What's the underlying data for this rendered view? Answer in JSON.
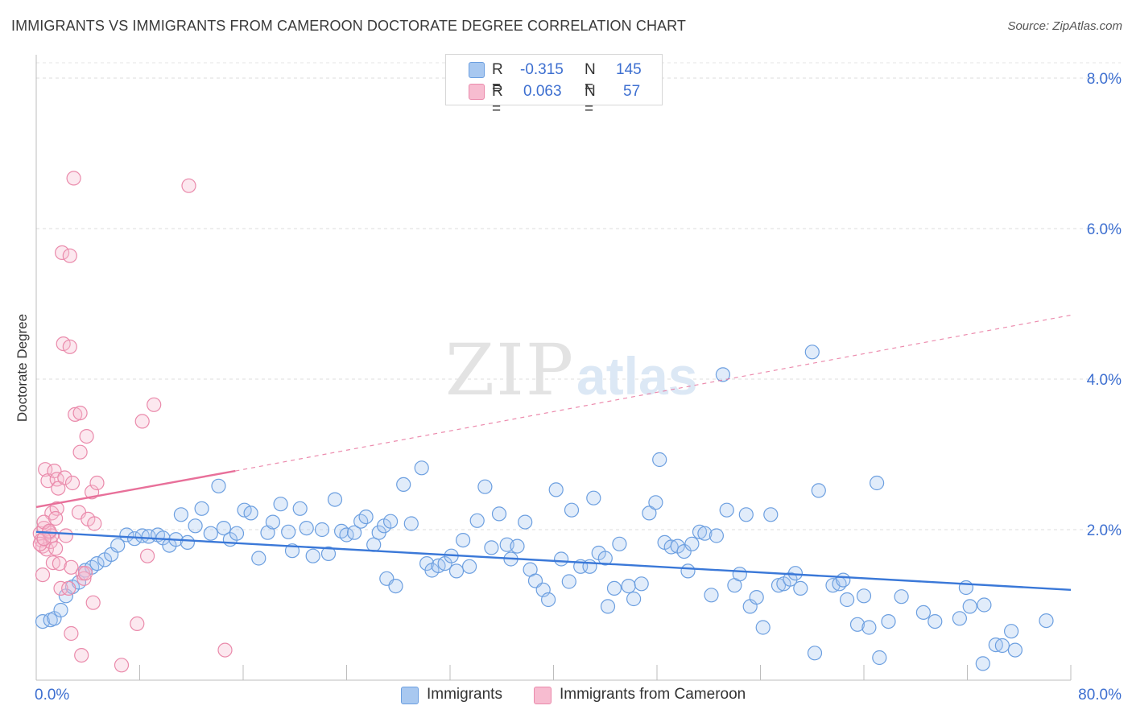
{
  "title": "IMMIGRANTS VS IMMIGRANTS FROM CAMEROON DOCTORATE DEGREE CORRELATION CHART",
  "source": "Source: ZipAtlas.com",
  "watermark": {
    "zip": "ZIP",
    "atlas": "atlas"
  },
  "legend": {
    "rows": [
      {
        "r_label": "R =",
        "r_value": "-0.315",
        "n_label": "N =",
        "n_value": "145",
        "color": "#a8c8f0",
        "border": "#6c9fe0"
      },
      {
        "r_label": "R =",
        "r_value": "0.063",
        "n_label": "N =",
        "n_value": "57",
        "color": "#f7bcd0",
        "border": "#ea8aab"
      }
    ]
  },
  "bottom_legend": [
    {
      "label": "Immigrants",
      "color": "#a8c8f0",
      "border": "#6c9fe0"
    },
    {
      "label": "Immigrants from Cameroon",
      "color": "#f7bcd0",
      "border": "#ea8aab"
    }
  ],
  "chart_data": {
    "type": "scatter",
    "ylabel": "Doctorate Degree",
    "xlim": [
      0,
      80
    ],
    "ylim": [
      0,
      8.2
    ],
    "x_tick_labels": [
      "0.0%",
      "80.0%"
    ],
    "y_tick_labels": [
      {
        "value": 2,
        "label": "2.0%"
      },
      {
        "value": 4,
        "label": "4.0%"
      },
      {
        "value": 6,
        "label": "6.0%"
      },
      {
        "value": 8,
        "label": "8.0%"
      }
    ],
    "grid": true,
    "colors": {
      "blue": "#3a78d8",
      "blue_fill": "rgba(168,200,240,0.35)",
      "pink": "#e8709a",
      "pink_fill": "rgba(247,188,208,0.35)"
    },
    "series": [
      {
        "name": "Immigrants",
        "trend": {
          "x": [
            0,
            80
          ],
          "y": [
            1.97,
            1.2
          ],
          "dashed_extension": false
        },
        "points": [
          [
            0.5,
            0.78
          ],
          [
            1.1,
            0.8
          ],
          [
            1.4,
            0.82
          ],
          [
            1.9,
            0.93
          ],
          [
            2.3,
            1.12
          ],
          [
            2.8,
            1.24
          ],
          [
            3.3,
            1.3
          ],
          [
            3.8,
            1.46
          ],
          [
            4.3,
            1.5
          ],
          [
            4.7,
            1.55
          ],
          [
            5.3,
            1.6
          ],
          [
            5.8,
            1.67
          ],
          [
            6.3,
            1.79
          ],
          [
            7.0,
            1.93
          ],
          [
            7.6,
            1.88
          ],
          [
            8.2,
            1.92
          ],
          [
            8.7,
            1.91
          ],
          [
            9.4,
            1.93
          ],
          [
            9.8,
            1.89
          ],
          [
            10.3,
            1.79
          ],
          [
            10.8,
            1.87
          ],
          [
            11.2,
            2.2
          ],
          [
            11.7,
            1.83
          ],
          [
            12.3,
            2.05
          ],
          [
            12.8,
            2.28
          ],
          [
            13.5,
            1.95
          ],
          [
            14.1,
            2.58
          ],
          [
            14.5,
            2.02
          ],
          [
            15.0,
            1.87
          ],
          [
            15.5,
            1.95
          ],
          [
            16.1,
            2.26
          ],
          [
            16.6,
            2.22
          ],
          [
            17.2,
            1.62
          ],
          [
            17.9,
            1.96
          ],
          [
            18.3,
            2.1
          ],
          [
            18.9,
            2.34
          ],
          [
            19.5,
            1.97
          ],
          [
            19.8,
            1.72
          ],
          [
            20.4,
            2.28
          ],
          [
            20.9,
            2.02
          ],
          [
            21.4,
            1.65
          ],
          [
            22.1,
            2.0
          ],
          [
            22.6,
            1.68
          ],
          [
            23.1,
            2.4
          ],
          [
            23.6,
            1.98
          ],
          [
            24.0,
            1.93
          ],
          [
            24.6,
            1.96
          ],
          [
            25.1,
            2.11
          ],
          [
            25.5,
            2.17
          ],
          [
            26.1,
            1.8
          ],
          [
            26.5,
            1.96
          ],
          [
            26.9,
            2.05
          ],
          [
            27.4,
            2.11
          ],
          [
            27.1,
            1.35
          ],
          [
            27.8,
            1.25
          ],
          [
            28.4,
            2.6
          ],
          [
            29.0,
            2.08
          ],
          [
            29.8,
            2.82
          ],
          [
            30.2,
            1.55
          ],
          [
            30.6,
            1.46
          ],
          [
            31.1,
            1.52
          ],
          [
            31.6,
            1.55
          ],
          [
            32.1,
            1.65
          ],
          [
            32.5,
            1.45
          ],
          [
            33.0,
            1.86
          ],
          [
            33.5,
            1.51
          ],
          [
            34.1,
            2.12
          ],
          [
            34.7,
            2.57
          ],
          [
            35.2,
            1.76
          ],
          [
            35.8,
            2.21
          ],
          [
            36.4,
            1.8
          ],
          [
            36.7,
            1.61
          ],
          [
            37.2,
            1.78
          ],
          [
            37.8,
            2.1
          ],
          [
            38.2,
            1.47
          ],
          [
            38.6,
            1.32
          ],
          [
            39.2,
            1.2
          ],
          [
            39.6,
            1.07
          ],
          [
            40.2,
            2.53
          ],
          [
            40.6,
            1.61
          ],
          [
            41.2,
            1.31
          ],
          [
            41.4,
            2.26
          ],
          [
            42.1,
            1.51
          ],
          [
            42.8,
            1.51
          ],
          [
            43.1,
            2.42
          ],
          [
            43.5,
            1.69
          ],
          [
            44.0,
            1.62
          ],
          [
            44.2,
            0.98
          ],
          [
            44.7,
            1.22
          ],
          [
            45.1,
            1.81
          ],
          [
            45.8,
            1.25
          ],
          [
            46.2,
            1.08
          ],
          [
            46.8,
            1.28
          ],
          [
            47.4,
            2.22
          ],
          [
            47.9,
            2.36
          ],
          [
            48.2,
            2.93
          ],
          [
            48.6,
            1.83
          ],
          [
            49.1,
            1.77
          ],
          [
            49.6,
            1.78
          ],
          [
            50.1,
            1.71
          ],
          [
            50.4,
            1.45
          ],
          [
            50.7,
            1.81
          ],
          [
            51.3,
            1.97
          ],
          [
            51.7,
            1.95
          ],
          [
            52.2,
            1.13
          ],
          [
            52.6,
            1.92
          ],
          [
            53.1,
            4.06
          ],
          [
            53.4,
            2.26
          ],
          [
            54.0,
            1.26
          ],
          [
            54.4,
            1.41
          ],
          [
            54.9,
            2.2
          ],
          [
            55.2,
            0.98
          ],
          [
            55.7,
            1.1
          ],
          [
            56.2,
            0.7
          ],
          [
            56.8,
            2.2
          ],
          [
            57.4,
            1.26
          ],
          [
            57.8,
            1.28
          ],
          [
            58.3,
            1.34
          ],
          [
            58.7,
            1.42
          ],
          [
            59.1,
            1.22
          ],
          [
            60.0,
            4.36
          ],
          [
            60.2,
            0.36
          ],
          [
            60.5,
            2.52
          ],
          [
            61.6,
            1.26
          ],
          [
            62.1,
            1.28
          ],
          [
            62.4,
            1.33
          ],
          [
            62.7,
            1.07
          ],
          [
            63.5,
            0.74
          ],
          [
            64.0,
            1.12
          ],
          [
            64.4,
            0.7
          ],
          [
            65.0,
            2.62
          ],
          [
            65.2,
            0.3
          ],
          [
            65.9,
            0.78
          ],
          [
            66.9,
            1.11
          ],
          [
            68.6,
            0.9
          ],
          [
            69.5,
            0.78
          ],
          [
            71.4,
            0.82
          ],
          [
            71.9,
            1.23
          ],
          [
            72.2,
            0.98
          ],
          [
            73.3,
            1.0
          ],
          [
            74.2,
            0.47
          ],
          [
            74.7,
            0.46
          ],
          [
            75.4,
            0.65
          ],
          [
            75.7,
            0.4
          ],
          [
            78.1,
            0.79
          ],
          [
            73.2,
            0.22
          ]
        ]
      },
      {
        "name": "Immigrants from Cameroon",
        "trend": {
          "x": [
            0,
            15.4
          ],
          "y": [
            2.3,
            2.78
          ],
          "dashed_extension": true,
          "extension_end": [
            80,
            4.85
          ]
        },
        "points": [
          [
            0.3,
            1.95
          ],
          [
            0.4,
            1.86
          ],
          [
            0.5,
            1.78
          ],
          [
            0.6,
            2.02
          ],
          [
            0.5,
            1.4
          ],
          [
            0.7,
            2.8
          ],
          [
            0.8,
            1.74
          ],
          [
            0.9,
            2.65
          ],
          [
            1.0,
            1.96
          ],
          [
            1.1,
            1.84
          ],
          [
            1.2,
            2.22
          ],
          [
            1.3,
            1.56
          ],
          [
            1.4,
            2.78
          ],
          [
            1.5,
            1.75
          ],
          [
            1.6,
            2.67
          ],
          [
            1.6,
            2.28
          ],
          [
            1.7,
            2.55
          ],
          [
            1.8,
            1.55
          ],
          [
            1.9,
            1.22
          ],
          [
            2.0,
            5.68
          ],
          [
            2.1,
            4.47
          ],
          [
            2.2,
            2.69
          ],
          [
            2.3,
            1.92
          ],
          [
            2.5,
            1.22
          ],
          [
            2.6,
            4.43
          ],
          [
            2.6,
            5.64
          ],
          [
            2.7,
            0.62
          ],
          [
            2.7,
            1.5
          ],
          [
            2.8,
            2.62
          ],
          [
            2.9,
            6.67
          ],
          [
            3.0,
            3.53
          ],
          [
            3.3,
            2.23
          ],
          [
            3.4,
            3.55
          ],
          [
            3.4,
            3.03
          ],
          [
            3.5,
            0.33
          ],
          [
            3.6,
            1.42
          ],
          [
            3.7,
            1.35
          ],
          [
            3.8,
            1.42
          ],
          [
            3.9,
            3.24
          ],
          [
            4.0,
            2.14
          ],
          [
            4.3,
            2.5
          ],
          [
            4.4,
            1.03
          ],
          [
            4.5,
            2.08
          ],
          [
            4.7,
            2.62
          ],
          [
            7.8,
            0.75
          ],
          [
            8.2,
            3.44
          ],
          [
            8.6,
            1.65
          ],
          [
            9.1,
            3.66
          ],
          [
            11.8,
            6.57
          ],
          [
            14.6,
            0.4
          ],
          [
            6.6,
            0.2
          ],
          [
            1.2,
            1.92
          ],
          [
            0.6,
            2.1
          ],
          [
            0.3,
            1.81
          ],
          [
            1.0,
            1.98
          ],
          [
            0.6,
            1.88
          ],
          [
            1.5,
            2.15
          ]
        ]
      }
    ]
  }
}
